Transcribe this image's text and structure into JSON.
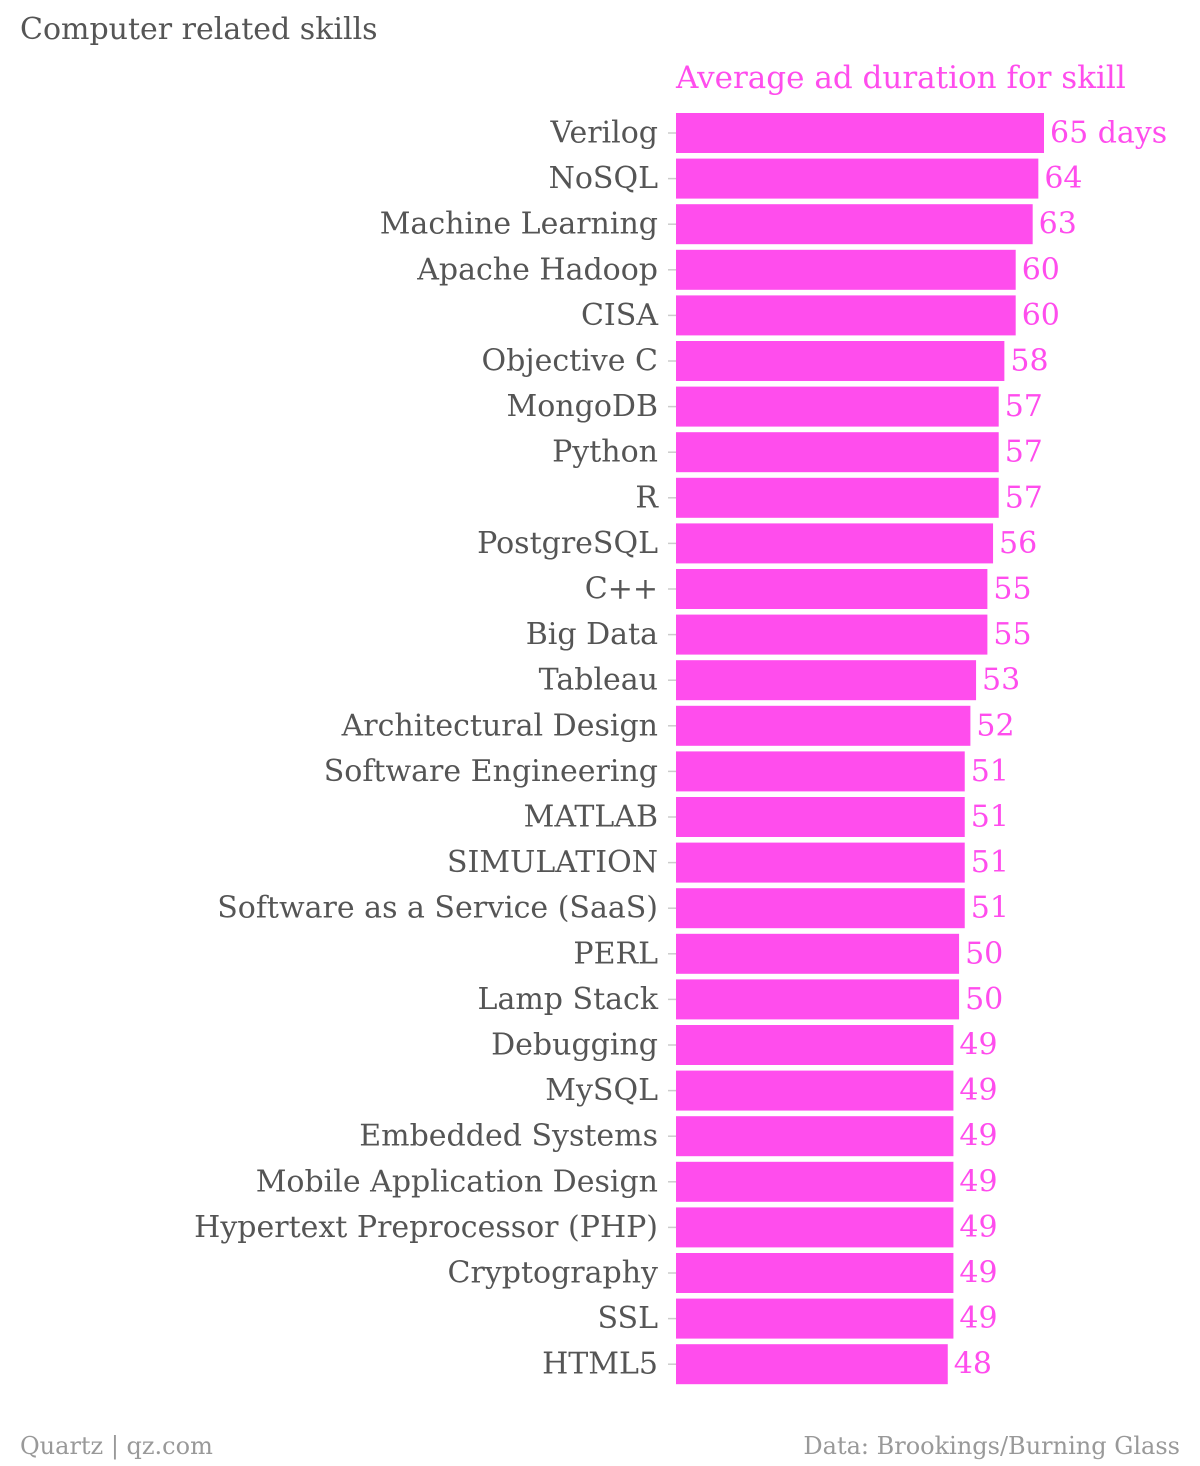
{
  "header": {
    "title": "Computer related skills"
  },
  "footer": {
    "source_left": "Quartz | qz.com",
    "source_right": "Data: Brookings/Burning Glass"
  },
  "colors": {
    "bar": "#ff4ded",
    "label": "#ff4ded",
    "text": "#555555",
    "muted": "#999999"
  },
  "chart_data": {
    "type": "bar",
    "orientation": "horizontal",
    "title": "Computer related skills",
    "series": [
      {
        "name": "Average ad duration for skill"
      }
    ],
    "value_suffix_first": " days",
    "xlim": [
      0,
      65
    ],
    "grid": false,
    "categories": [
      "Verilog",
      "NoSQL",
      "Machine Learning",
      "Apache Hadoop",
      "CISA",
      "Objective C",
      "MongoDB",
      "Python",
      "R",
      "PostgreSQL",
      "C++",
      "Big Data",
      "Tableau",
      "Architectural Design",
      "Software Engineering",
      "MATLAB",
      "SIMULATION",
      "Software as a Service (SaaS)",
      "PERL",
      "Lamp Stack",
      "Debugging",
      "MySQL",
      "Embedded Systems",
      "Mobile Application Design",
      "Hypertext Preprocessor (PHP)",
      "Cryptography",
      "SSL",
      "HTML5"
    ],
    "values": [
      65,
      64,
      63,
      60,
      60,
      58,
      57,
      57,
      57,
      56,
      55,
      55,
      53,
      52,
      51,
      51,
      51,
      51,
      50,
      50,
      49,
      49,
      49,
      49,
      49,
      49,
      49,
      48
    ]
  }
}
